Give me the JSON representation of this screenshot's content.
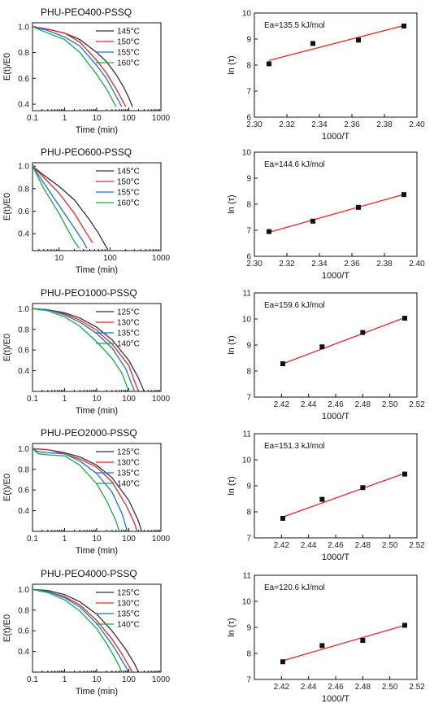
{
  "chart_data": [
    {
      "type": "line",
      "title": "PHU-PEO400-PSSQ",
      "xlabel": "Time (min)",
      "ylabel": "E(t)/E0",
      "xscale": "log",
      "xlim": [
        0.1,
        1000
      ],
      "ylim": [
        0.35,
        1.03
      ],
      "xticks": [
        "0.1",
        "1",
        "10",
        "100",
        "1000"
      ],
      "yticks": [
        "0.4",
        "0.6",
        "0.8",
        "1.0"
      ],
      "legend_position": "right",
      "series": [
        {
          "name": "145°C",
          "color": "#333333",
          "x": [
            0.1,
            0.3,
            1,
            3,
            10,
            20,
            40,
            70,
            100,
            130
          ],
          "y": [
            1.0,
            0.98,
            0.95,
            0.9,
            0.8,
            0.73,
            0.63,
            0.53,
            0.45,
            0.38
          ]
        },
        {
          "name": "150°C",
          "color": "#e8262a",
          "x": [
            0.1,
            0.3,
            1,
            3,
            10,
            20,
            40,
            60,
            80
          ],
          "y": [
            1.0,
            0.98,
            0.95,
            0.88,
            0.74,
            0.64,
            0.52,
            0.44,
            0.38
          ]
        },
        {
          "name": "155°C",
          "color": "#1f6fd1",
          "x": [
            0.1,
            0.3,
            1,
            3,
            10,
            20,
            30,
            45,
            60
          ],
          "y": [
            1.0,
            0.97,
            0.92,
            0.85,
            0.7,
            0.6,
            0.52,
            0.44,
            0.38
          ]
        },
        {
          "name": "160°C",
          "color": "#1aa84a",
          "x": [
            0.1,
            0.3,
            1,
            3,
            10,
            20,
            30,
            40
          ],
          "y": [
            1.0,
            0.95,
            0.9,
            0.8,
            0.63,
            0.52,
            0.44,
            0.38
          ]
        }
      ]
    },
    {
      "type": "scatter",
      "annotation": "Ea=135.5 kJ/mol",
      "xlabel": "1000/T",
      "ylabel": "ln (τ)",
      "xlim": [
        2.3,
        2.4
      ],
      "ylim": [
        6,
        10
      ],
      "xticks": [
        "2.30",
        "2.32",
        "2.34",
        "2.36",
        "2.38",
        "2.40"
      ],
      "yticks": [
        "6",
        "7",
        "8",
        "9",
        "10"
      ],
      "points": [
        {
          "x": 2.309,
          "y": 8.05
        },
        {
          "x": 2.336,
          "y": 8.83
        },
        {
          "x": 2.364,
          "y": 8.96
        },
        {
          "x": 2.392,
          "y": 9.5
        }
      ],
      "fit": {
        "x": [
          2.309,
          2.392
        ],
        "y": [
          8.18,
          9.52
        ]
      }
    },
    {
      "type": "line",
      "title": "PHU-PEO600-PSSQ",
      "xlabel": "Time (min)",
      "ylabel": "E(t)/E0",
      "xscale": "log",
      "xlim": [
        3,
        1000
      ],
      "ylim": [
        0.25,
        1.03
      ],
      "xticks": [
        "10",
        "100",
        "1000"
      ],
      "yticks": [
        "0.4",
        "0.6",
        "0.8",
        "1.0"
      ],
      "legend_position": "right",
      "series": [
        {
          "name": "145°C",
          "color": "#333333",
          "x": [
            3,
            5,
            10,
            20,
            40,
            60,
            80,
            90
          ],
          "y": [
            1.0,
            0.92,
            0.82,
            0.7,
            0.52,
            0.4,
            0.3,
            0.26
          ]
        },
        {
          "name": "150°C",
          "color": "#e8262a",
          "x": [
            3,
            5,
            10,
            20,
            30,
            40,
            45
          ],
          "y": [
            1.0,
            0.9,
            0.76,
            0.58,
            0.45,
            0.36,
            0.32
          ]
        },
        {
          "name": "155°C",
          "color": "#1f6fd1",
          "x": [
            3,
            5,
            10,
            20,
            30,
            35
          ],
          "y": [
            1.0,
            0.85,
            0.65,
            0.45,
            0.33,
            0.27
          ]
        },
        {
          "name": "160°C",
          "color": "#1aa84a",
          "x": [
            3,
            5,
            10,
            15,
            20,
            25
          ],
          "y": [
            1.0,
            0.8,
            0.58,
            0.43,
            0.33,
            0.27
          ]
        }
      ]
    },
    {
      "type": "scatter",
      "annotation": "Ea=144.6 kJ/mol",
      "xlabel": "1000/T",
      "ylabel": "ln (τ)",
      "xlim": [
        2.3,
        2.4
      ],
      "ylim": [
        6,
        10
      ],
      "xticks": [
        "2.30",
        "2.32",
        "2.34",
        "2.36",
        "2.38",
        "2.40"
      ],
      "yticks": [
        "6",
        "7",
        "8",
        "9",
        "10"
      ],
      "points": [
        {
          "x": 2.309,
          "y": 6.95
        },
        {
          "x": 2.336,
          "y": 7.35
        },
        {
          "x": 2.364,
          "y": 7.88
        },
        {
          "x": 2.392,
          "y": 8.37
        }
      ],
      "fit": {
        "x": [
          2.309,
          2.392
        ],
        "y": [
          6.92,
          8.38
        ]
      }
    },
    {
      "type": "line",
      "title": "PHU-PEO1000-PSSQ",
      "xlabel": "Time (min)",
      "ylabel": "E(t)/E0",
      "xscale": "log",
      "xlim": [
        0.1,
        1000
      ],
      "ylim": [
        0.2,
        1.05
      ],
      "xticks": [
        "0.1",
        "1",
        "10",
        "100",
        "1000"
      ],
      "yticks": [
        "0.4",
        "0.6",
        "0.8",
        "1.0"
      ],
      "legend_position": "right",
      "series": [
        {
          "name": "125°C",
          "color": "#333333",
          "x": [
            0.1,
            0.3,
            1,
            3,
            10,
            30,
            100,
            200,
            300
          ],
          "y": [
            1.0,
            0.99,
            0.96,
            0.91,
            0.82,
            0.7,
            0.5,
            0.33,
            0.2
          ]
        },
        {
          "name": "130°C",
          "color": "#e8262a",
          "x": [
            0.1,
            0.3,
            1,
            3,
            10,
            30,
            100,
            150,
            200
          ],
          "y": [
            1.0,
            0.99,
            0.95,
            0.89,
            0.79,
            0.66,
            0.45,
            0.3,
            0.2
          ]
        },
        {
          "name": "135°C",
          "color": "#1f6fd1",
          "x": [
            0.1,
            0.3,
            1,
            3,
            10,
            30,
            80,
            120,
            150
          ],
          "y": [
            1.0,
            0.99,
            0.94,
            0.87,
            0.76,
            0.62,
            0.42,
            0.28,
            0.2
          ]
        },
        {
          "name": "140°C",
          "color": "#1aa84a",
          "x": [
            0.1,
            0.3,
            1,
            3,
            10,
            30,
            60,
            80,
            100
          ],
          "y": [
            1.0,
            0.98,
            0.92,
            0.83,
            0.68,
            0.52,
            0.38,
            0.28,
            0.2
          ]
        }
      ]
    },
    {
      "type": "scatter",
      "annotation": "Ea=159.6 kJ/mol",
      "xlabel": "1000/T",
      "ylabel": "ln (τ)",
      "xlim": [
        2.4,
        2.52
      ],
      "ylim": [
        7,
        11
      ],
      "xticks": [
        "2.42",
        "2.44",
        "2.46",
        "2.48",
        "2.50",
        "2.52"
      ],
      "yticks": [
        "7",
        "8",
        "9",
        "10",
        "11"
      ],
      "points": [
        {
          "x": 2.421,
          "y": 8.28
        },
        {
          "x": 2.45,
          "y": 8.93
        },
        {
          "x": 2.48,
          "y": 9.48
        },
        {
          "x": 2.511,
          "y": 10.03
        }
      ],
      "fit": {
        "x": [
          2.421,
          2.511
        ],
        "y": [
          8.28,
          10.05
        ]
      }
    },
    {
      "type": "line",
      "title": "PHU-PEO2000-PSSQ",
      "xlabel": "Time (min)",
      "ylabel": "E(t)/E0",
      "xscale": "log",
      "xlim": [
        0.1,
        1000
      ],
      "ylim": [
        0.2,
        1.05
      ],
      "xticks": [
        "0.1",
        "1",
        "10",
        "100",
        "1000"
      ],
      "yticks": [
        "0.4",
        "0.6",
        "0.8",
        "1.0"
      ],
      "legend_position": "right",
      "series": [
        {
          "name": "125°C",
          "color": "#333333",
          "x": [
            0.1,
            0.3,
            1,
            3,
            10,
            30,
            100,
            200,
            250
          ],
          "y": [
            1.0,
            0.99,
            0.96,
            0.92,
            0.84,
            0.72,
            0.5,
            0.3,
            0.2
          ]
        },
        {
          "name": "130°C",
          "color": "#e8262a",
          "x": [
            0.1,
            0.3,
            1,
            3,
            10,
            30,
            80,
            150,
            180
          ],
          "y": [
            1.0,
            0.99,
            0.95,
            0.9,
            0.82,
            0.68,
            0.46,
            0.28,
            0.2
          ]
        },
        {
          "name": "135°C",
          "color": "#1f6fd1",
          "x": [
            0.1,
            0.15,
            0.3,
            1,
            3,
            10,
            30,
            60,
            90
          ],
          "y": [
            1.0,
            0.97,
            0.96,
            0.95,
            0.88,
            0.76,
            0.58,
            0.38,
            0.2
          ]
        },
        {
          "name": "140°C",
          "color": "#1aa84a",
          "x": [
            0.1,
            0.15,
            0.3,
            1,
            3,
            10,
            20,
            40,
            50
          ],
          "y": [
            1.0,
            0.95,
            0.94,
            0.93,
            0.84,
            0.66,
            0.5,
            0.3,
            0.2
          ]
        }
      ]
    },
    {
      "type": "scatter",
      "annotation": "Ea=151.3 kJ/mol",
      "xlabel": "1000/T",
      "ylabel": "ln (τ)",
      "xlim": [
        2.4,
        2.52
      ],
      "ylim": [
        7,
        11
      ],
      "xticks": [
        "2.42",
        "2.44",
        "2.46",
        "2.48",
        "2.50",
        "2.52"
      ],
      "yticks": [
        "7",
        "8",
        "9",
        "10",
        "11"
      ],
      "points": [
        {
          "x": 2.421,
          "y": 7.75
        },
        {
          "x": 2.45,
          "y": 8.48
        },
        {
          "x": 2.48,
          "y": 8.93
        },
        {
          "x": 2.511,
          "y": 9.45
        }
      ],
      "fit": {
        "x": [
          2.421,
          2.511
        ],
        "y": [
          7.8,
          9.48
        ]
      }
    },
    {
      "type": "line",
      "title": "PHU-PEO4000-PSSQ",
      "xlabel": "Time (min)",
      "ylabel": "E(t)/E0",
      "xscale": "log",
      "xlim": [
        0.1,
        1000
      ],
      "ylim": [
        0.2,
        1.05
      ],
      "xticks": [
        "0.1",
        "1",
        "10",
        "100",
        "1000"
      ],
      "yticks": [
        "0.4",
        "0.6",
        "0.8",
        "1.0"
      ],
      "legend_position": "right",
      "series": [
        {
          "name": "125°C",
          "color": "#333333",
          "x": [
            0.1,
            0.3,
            1,
            3,
            10,
            30,
            80,
            150,
            200
          ],
          "y": [
            1.0,
            0.99,
            0.95,
            0.88,
            0.76,
            0.6,
            0.42,
            0.28,
            0.2
          ]
        },
        {
          "name": "130°C",
          "color": "#e8262a",
          "x": [
            0.1,
            0.3,
            1,
            3,
            10,
            30,
            60,
            100,
            130
          ],
          "y": [
            1.0,
            0.98,
            0.93,
            0.85,
            0.7,
            0.52,
            0.38,
            0.26,
            0.2
          ]
        },
        {
          "name": "135°C",
          "color": "#1f6fd1",
          "x": [
            0.1,
            0.3,
            1,
            3,
            10,
            30,
            50,
            80,
            100
          ],
          "y": [
            1.0,
            0.98,
            0.92,
            0.83,
            0.67,
            0.47,
            0.36,
            0.25,
            0.2
          ]
        },
        {
          "name": "140°C",
          "color": "#1aa84a",
          "x": [
            0.1,
            0.3,
            1,
            3,
            10,
            20,
            35,
            50,
            60
          ],
          "y": [
            1.0,
            0.97,
            0.9,
            0.79,
            0.62,
            0.48,
            0.35,
            0.26,
            0.2
          ]
        }
      ]
    },
    {
      "type": "scatter",
      "annotation": "Ea=120.6 kJ/mol",
      "xlabel": "1000/T",
      "ylabel": "ln (τ)",
      "xlim": [
        2.4,
        2.52
      ],
      "ylim": [
        7,
        11
      ],
      "xticks": [
        "2.42",
        "2.44",
        "2.46",
        "2.48",
        "2.50",
        "2.52"
      ],
      "yticks": [
        "7",
        "8",
        "9",
        "10",
        "11"
      ],
      "points": [
        {
          "x": 2.421,
          "y": 7.68
        },
        {
          "x": 2.45,
          "y": 8.3
        },
        {
          "x": 2.48,
          "y": 8.5
        },
        {
          "x": 2.511,
          "y": 9.08
        }
      ],
      "fit": {
        "x": [
          2.421,
          2.511
        ],
        "y": [
          7.72,
          9.08
        ]
      }
    }
  ]
}
